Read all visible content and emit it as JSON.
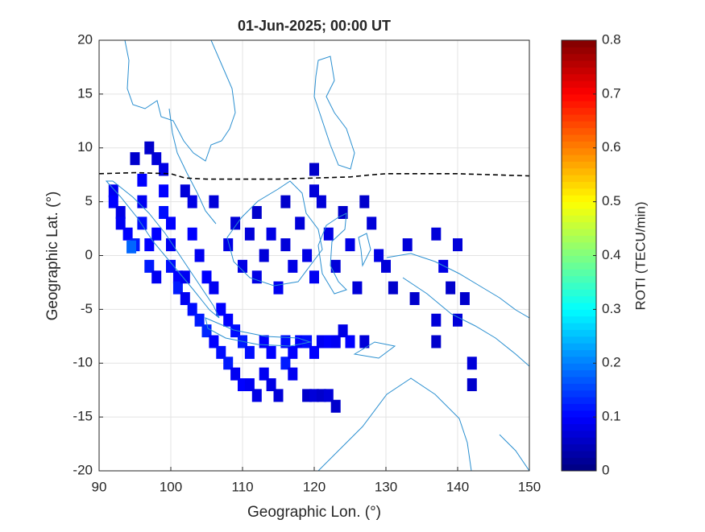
{
  "chart_data": {
    "type": "gridmap",
    "title": "01-Jun-2025; 00:00 UT",
    "x_label": "Geographic Lon. (°)",
    "y_label": "Geographic Lat. (°)",
    "colorbar_label": "ROTI (TECU/min)",
    "colormap": "jet",
    "xlim": [
      90,
      150
    ],
    "ylim": [
      -20,
      20
    ],
    "xticks": [
      90,
      100,
      110,
      120,
      130,
      140,
      150
    ],
    "yticks": [
      -20,
      -15,
      -10,
      -5,
      0,
      5,
      10,
      15,
      20
    ],
    "clim": [
      0,
      0.8
    ],
    "cticks": [
      0,
      0.1,
      0.2,
      0.3,
      0.4,
      0.5,
      0.6,
      0.7,
      0.8
    ],
    "grid": true,
    "lon": [
      92,
      92,
      93,
      93,
      94,
      95,
      94.5,
      95,
      96,
      96,
      96,
      97,
      97,
      98,
      98,
      99,
      99,
      99,
      100,
      100,
      100,
      101,
      101,
      102,
      102,
      103,
      103,
      103,
      104,
      104,
      105,
      105,
      106,
      106,
      107,
      107,
      108,
      108,
      109,
      109,
      110,
      110,
      111,
      111,
      112,
      113,
      113,
      114,
      114,
      115,
      116,
      116,
      117,
      117,
      118,
      119,
      120,
      121,
      122,
      123,
      124,
      125,
      119,
      120,
      121,
      122,
      123,
      127,
      108,
      109,
      110,
      111,
      112,
      112,
      113,
      114,
      115,
      116,
      116,
      117,
      118,
      119,
      120,
      121,
      122,
      123,
      124,
      125,
      126,
      127,
      128,
      129,
      130,
      131,
      133,
      134,
      137,
      138,
      139,
      140,
      141,
      137,
      137,
      140,
      142,
      142,
      120,
      120,
      106,
      102,
      97,
      98
    ],
    "lat": [
      6,
      5,
      4,
      3,
      2,
      1,
      0.8,
      9,
      7,
      5,
      3,
      1,
      -1,
      -2,
      9,
      8,
      6,
      4,
      3,
      1,
      -1,
      -2,
      -3,
      -4,
      6,
      5,
      2,
      -5,
      -6,
      0,
      -2,
      -7,
      -8,
      -3,
      -9,
      -5,
      -10,
      -6,
      -11,
      -7,
      -12,
      -8,
      -9,
      -12,
      -13,
      -8,
      -11,
      -9,
      -12,
      -13,
      -8,
      -10,
      -9,
      -11,
      -8,
      -8,
      -9,
      -8,
      -8,
      -8,
      -7,
      -8,
      -13,
      -13,
      -13,
      -13,
      -14,
      -8,
      1,
      3,
      -1,
      2,
      4,
      -2,
      0,
      2,
      -3,
      1,
      5,
      -1,
      3,
      0,
      -2,
      5,
      2,
      -1,
      4,
      1,
      -3,
      5,
      3,
      0,
      -1,
      -3,
      1,
      -4,
      2,
      -1,
      -3,
      1,
      -4,
      -6,
      -8,
      -6,
      -10,
      -12,
      6,
      8,
      5,
      -2,
      10,
      2
    ],
    "roti": [
      0.09,
      0.1,
      0.08,
      0.09,
      0.1,
      0.12,
      0.18,
      0.06,
      0.1,
      0.09,
      0.11,
      0.1,
      0.12,
      0.09,
      0.07,
      0.08,
      0.1,
      0.11,
      0.1,
      0.09,
      0.11,
      0.1,
      0.12,
      0.09,
      0.07,
      0.08,
      0.1,
      0.11,
      0.12,
      0.09,
      0.1,
      0.13,
      0.1,
      0.09,
      0.11,
      0.1,
      0.12,
      0.1,
      0.09,
      0.11,
      0.1,
      0.12,
      0.11,
      0.09,
      0.08,
      0.1,
      0.09,
      0.1,
      0.08,
      0.07,
      0.11,
      0.12,
      0.1,
      0.09,
      0.1,
      0.11,
      0.1,
      0.09,
      0.1,
      0.09,
      0.08,
      0.1,
      0.06,
      0.07,
      0.06,
      0.07,
      0.06,
      0.07,
      0.08,
      0.07,
      0.08,
      0.07,
      0.06,
      0.08,
      0.07,
      0.08,
      0.09,
      0.07,
      0.06,
      0.08,
      0.07,
      0.08,
      0.09,
      0.07,
      0.08,
      0.07,
      0.06,
      0.08,
      0.07,
      0.06,
      0.07,
      0.08,
      0.07,
      0.06,
      0.07,
      0.06,
      0.07,
      0.08,
      0.06,
      0.07,
      0.06,
      0.07,
      0.06,
      0.07,
      0.07,
      0.06,
      0.07,
      0.06,
      0.07,
      0.09,
      0.06,
      0.1
    ],
    "equator": {
      "x": [
        90,
        95,
        100,
        102,
        105,
        110,
        115,
        120,
        125,
        128,
        130,
        135,
        140,
        145,
        150
      ],
      "y": [
        7.6,
        7.7,
        7.6,
        7.2,
        7.1,
        7.1,
        7.1,
        7.2,
        7.3,
        7.5,
        7.6,
        7.6,
        7.6,
        7.5,
        7.4
      ]
    }
  }
}
